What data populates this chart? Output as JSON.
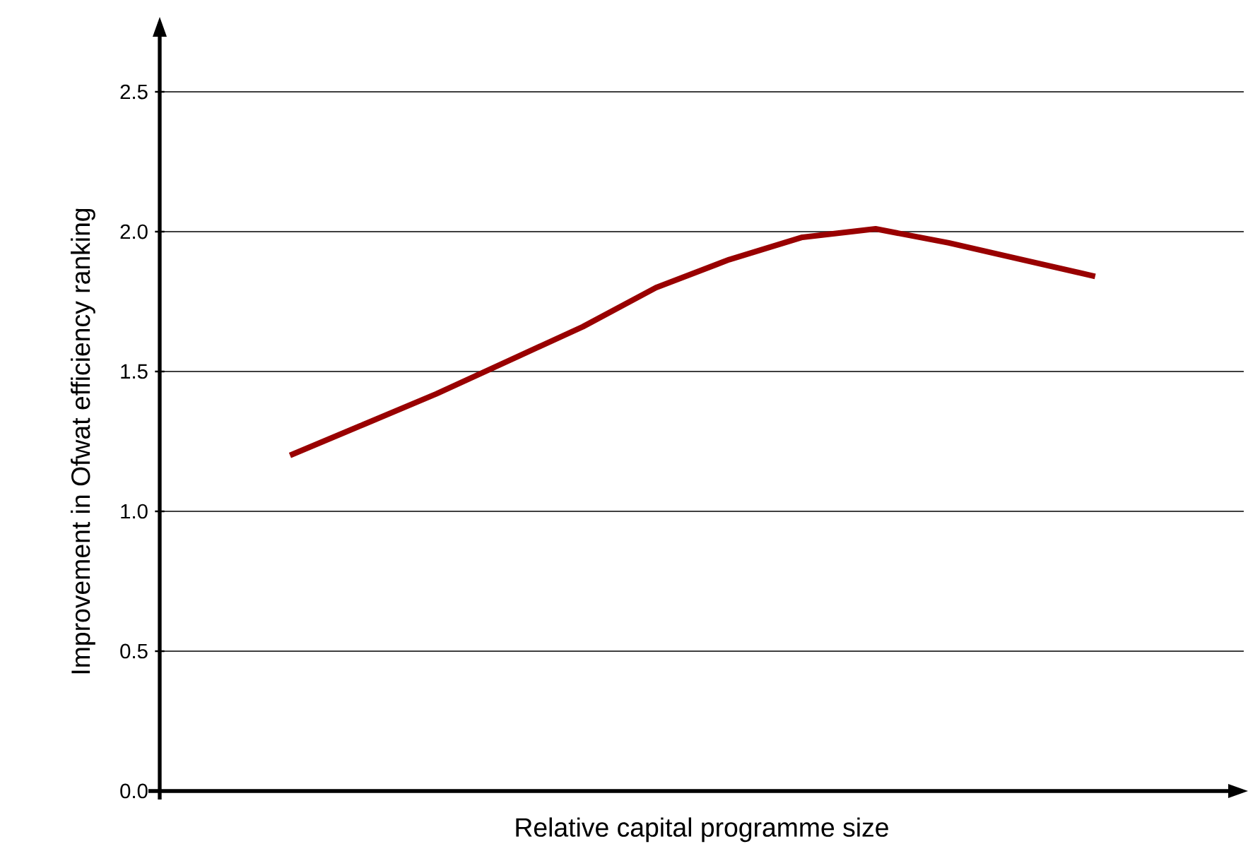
{
  "chart_data": {
    "type": "line",
    "xlabel": "Relative capital programme size",
    "ylabel": "Improvement in Ofwat efficiency ranking",
    "categories": [
      null,
      null,
      null,
      null,
      null,
      null,
      null,
      null,
      null,
      null,
      null,
      null
    ],
    "series": [
      {
        "color": "#990000",
        "values": [
          1.2,
          1.31,
          1.42,
          1.54,
          1.66,
          1.8,
          1.9,
          1.98,
          2.01,
          1.96,
          1.9,
          1.84
        ]
      }
    ],
    "ylim": [
      0,
      2.5
    ],
    "yticks": [
      {
        "value": 0,
        "label": "0.0"
      },
      {
        "value": 0.5,
        "label": "0.5"
      },
      {
        "value": 1,
        "label": "1.0"
      },
      {
        "value": 1.5,
        "label": "1.5"
      },
      {
        "value": 2,
        "label": "2.0"
      },
      {
        "value": 2.5,
        "label": "2.5"
      }
    ],
    "grid": "y",
    "tick_labels": "y",
    "marker": "none",
    "line_style": "solid"
  }
}
